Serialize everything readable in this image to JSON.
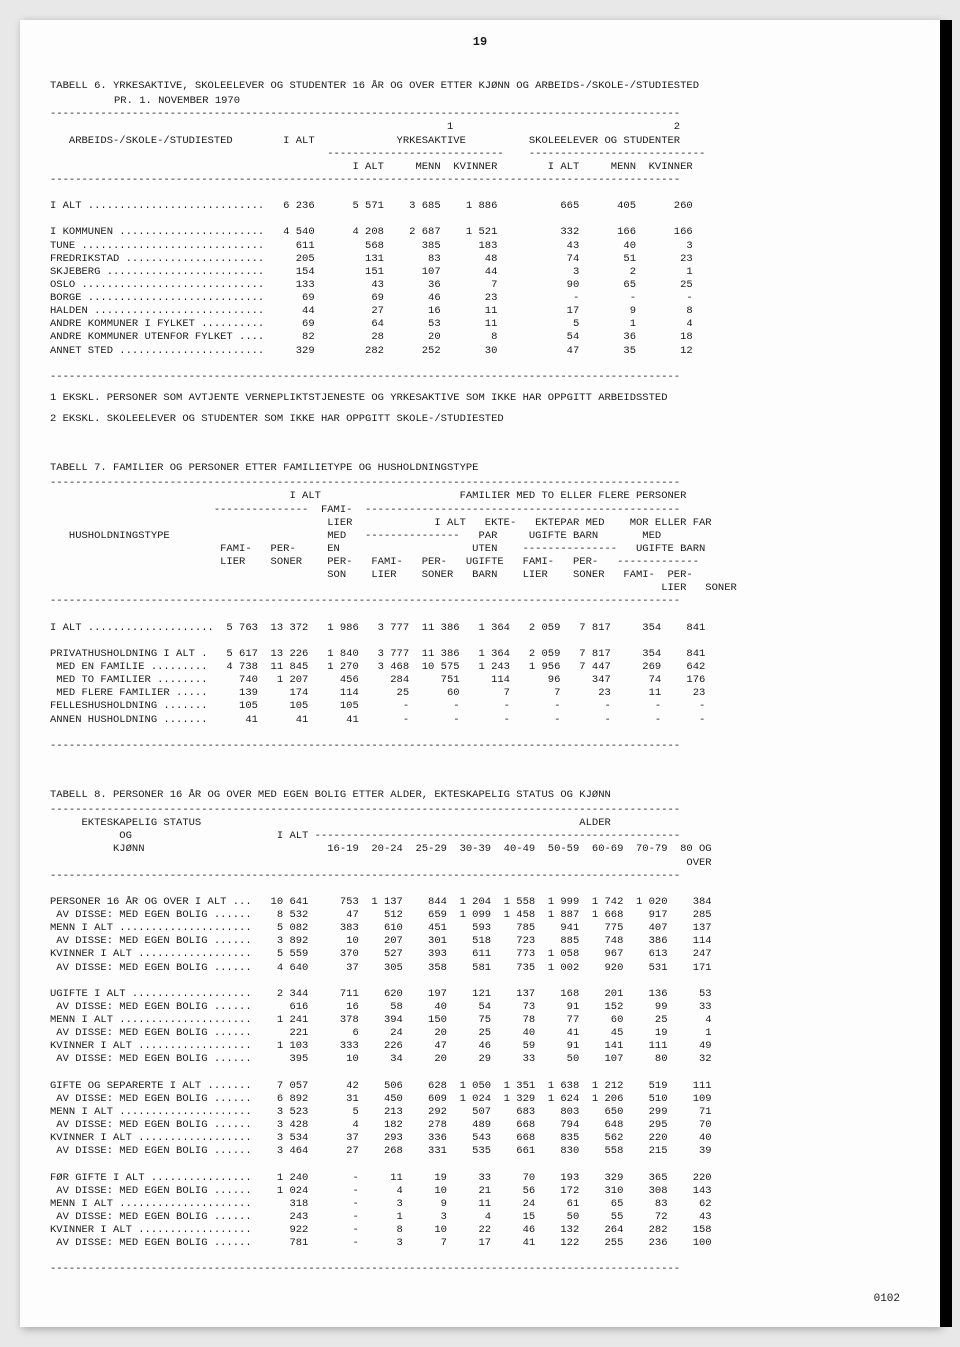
{
  "page_number": "19",
  "table6": {
    "title": "TABELL 6. YRKESAKTIVE, SKOLEELEVER OG STUDENTER 16 ÅR OG OVER ETTER KJØNN OG ARBEIDS-/SKOLE-/STUDIESTED",
    "subtitle": "PR. 1. NOVEMBER 1970",
    "header1": "ARBEIDS-/SKOLE-/STUDIESTED",
    "header_ialt": "I ALT",
    "group1": "YRKESAKTIVE",
    "group1_sup": "1",
    "group2": "SKOLEELEVER OG STUDENTER",
    "group2_sup": "2",
    "cols": [
      "I ALT",
      "MENN",
      "KVINNER",
      "I ALT",
      "MENN",
      "KVINNER"
    ],
    "rows": [
      {
        "label": "I ALT ............................",
        "v": [
          "6 236",
          "5 571",
          "3 685",
          "1 886",
          "665",
          "405",
          "260"
        ]
      },
      {
        "label": "I KOMMUNEN .......................",
        "v": [
          "4 540",
          "4 208",
          "2 687",
          "1 521",
          "332",
          "166",
          "166"
        ]
      },
      {
        "label": "TUNE .............................",
        "v": [
          "611",
          "568",
          "385",
          "183",
          "43",
          "40",
          "3"
        ]
      },
      {
        "label": "FREDRIKSTAD ......................",
        "v": [
          "205",
          "131",
          "83",
          "48",
          "74",
          "51",
          "23"
        ]
      },
      {
        "label": "SKJEBERG .........................",
        "v": [
          "154",
          "151",
          "107",
          "44",
          "3",
          "2",
          "1"
        ]
      },
      {
        "label": "OSLO .............................",
        "v": [
          "133",
          "43",
          "36",
          "7",
          "90",
          "65",
          "25"
        ]
      },
      {
        "label": "BORGE ............................",
        "v": [
          "69",
          "69",
          "46",
          "23",
          "-",
          "-",
          "-"
        ]
      },
      {
        "label": "HALDEN ...........................",
        "v": [
          "44",
          "27",
          "16",
          "11",
          "17",
          "9",
          "8"
        ]
      },
      {
        "label": "ANDRE KOMMUNER I FYLKET ..........",
        "v": [
          "69",
          "64",
          "53",
          "11",
          "5",
          "1",
          "4"
        ]
      },
      {
        "label": "ANDRE KOMMUNER UTENFOR FYLKET ....",
        "v": [
          "82",
          "28",
          "20",
          "8",
          "54",
          "36",
          "18"
        ]
      },
      {
        "label": "ANNET STED .......................",
        "v": [
          "329",
          "282",
          "252",
          "30",
          "47",
          "35",
          "12"
        ]
      }
    ],
    "note1": "1 EKSKL. PERSONER SOM AVTJENTE VERNEPLIKTSTJENESTE OG YRKESAKTIVE SOM IKKE HAR OPPGITT ARBEIDSSTED",
    "note2": "2 EKSKL. SKOLEELEVER OG STUDENTER SOM IKKE HAR OPPGITT SKOLE-/STUDIESTED"
  },
  "table7": {
    "title": "TABELL 7. FAMILIER OG PERSONER ETTER FAMILIETYPE OG HUSHOLDNINGSTYPE",
    "header_label": "HUSHOLDNINGSTYPE",
    "group_ialt": "I ALT",
    "group_fam": "FAMILIER MED TO ELLER FLERE PERSONER",
    "sub_famlier_en": "FAMI-\nLIER\nMED\nEN\nPER-\nSON",
    "sub_ialt": "I ALT",
    "sub_ektepar": "EKTE-\nPAR\nUTEN\nUGIFTE\nBARN",
    "sub_ektepar_med": "EKTEPAR MED\nUGIFTE BARN",
    "sub_moreller": "MOR ELLER FAR\nMED\nUGIFTE BARN",
    "cols_low": [
      "FAMI-\nLIER",
      "PER-\nSONER",
      "FAMI-\nLIER",
      "PER-\nSONER",
      "FAMI-\nLIER",
      "PER-\nSONER",
      "FAMI-\nLIER",
      "PER-\nSONER"
    ],
    "rows": [
      {
        "label": "I ALT ....................",
        "v": [
          "5 763",
          "13 372",
          "1 986",
          "3 777",
          "11 386",
          "1 364",
          "2 059",
          "7 817",
          "354",
          "841"
        ]
      },
      {
        "label": "PRIVATHUSHOLDNING I ALT .",
        "v": [
          "5 617",
          "13 226",
          "1 840",
          "3 777",
          "11 386",
          "1 364",
          "2 059",
          "7 817",
          "354",
          "841"
        ]
      },
      {
        "label": " MED EN FAMILIE .........",
        "v": [
          "4 738",
          "11 845",
          "1 270",
          "3 468",
          "10 575",
          "1 243",
          "1 956",
          "7 447",
          "269",
          "642"
        ]
      },
      {
        "label": " MED TO FAMILIER ........",
        "v": [
          "740",
          "1 207",
          "456",
          "284",
          "751",
          "114",
          "96",
          "347",
          "74",
          "176"
        ]
      },
      {
        "label": " MED FLERE FAMILIER .....",
        "v": [
          "139",
          "174",
          "114",
          "25",
          "60",
          "7",
          "7",
          "23",
          "11",
          "23"
        ]
      },
      {
        "label": "FELLESHUSHOLDNING .......",
        "v": [
          "105",
          "105",
          "105",
          "-",
          "-",
          "-",
          "-",
          "-",
          "-",
          "-"
        ]
      },
      {
        "label": "ANNEN HUSHOLDNING .......",
        "v": [
          "41",
          "41",
          "41",
          "-",
          "-",
          "-",
          "-",
          "-",
          "-",
          "-"
        ]
      }
    ]
  },
  "table8": {
    "title": "TABELL 8. PERSONER 16 ÅR OG OVER MED EGEN BOLIG ETTER ALDER, EKTESKAPELIG STATUS OG KJØNN",
    "header_label1": "EKTESKAPELIG STATUS",
    "header_label2": "OG",
    "header_label3": "KJØNN",
    "header_ialt": "I ALT",
    "header_alder": "ALDER",
    "age_cols": [
      "16-19",
      "20-24",
      "25-29",
      "30-39",
      "40-49",
      "50-59",
      "60-69",
      "70-79",
      "80 OG\nOVER"
    ],
    "rows": [
      {
        "label": "PERSONER 16 ÅR OG OVER I ALT ...",
        "v": [
          "10 641",
          "753",
          "1 137",
          "844",
          "1 204",
          "1 558",
          "1 999",
          "1 742",
          "1 020",
          "384"
        ]
      },
      {
        "label": " AV DISSE: MED EGEN BOLIG ......",
        "v": [
          "8 532",
          "47",
          "512",
          "659",
          "1 099",
          "1 458",
          "1 887",
          "1 668",
          "917",
          "285"
        ]
      },
      {
        "label": "MENN I ALT .....................",
        "v": [
          "5 082",
          "383",
          "610",
          "451",
          "593",
          "785",
          "941",
          "775",
          "407",
          "137"
        ]
      },
      {
        "label": " AV DISSE: MED EGEN BOLIG ......",
        "v": [
          "3 892",
          "10",
          "207",
          "301",
          "518",
          "723",
          "885",
          "748",
          "386",
          "114"
        ]
      },
      {
        "label": "KVINNER I ALT ..................",
        "v": [
          "5 559",
          "370",
          "527",
          "393",
          "611",
          "773",
          "1 058",
          "967",
          "613",
          "247"
        ]
      },
      {
        "label": " AV DISSE: MED EGEN BOLIG ......",
        "v": [
          "4 640",
          "37",
          "305",
          "358",
          "581",
          "735",
          "1 002",
          "920",
          "531",
          "171"
        ]
      },
      {
        "gap": true
      },
      {
        "label": "UGIFTE I ALT ...................",
        "v": [
          "2 344",
          "711",
          "620",
          "197",
          "121",
          "137",
          "168",
          "201",
          "136",
          "53"
        ]
      },
      {
        "label": " AV DISSE: MED EGEN BOLIG ......",
        "v": [
          "616",
          "16",
          "58",
          "40",
          "54",
          "73",
          "91",
          "152",
          "99",
          "33"
        ]
      },
      {
        "label": "MENN I ALT .....................",
        "v": [
          "1 241",
          "378",
          "394",
          "150",
          "75",
          "78",
          "77",
          "60",
          "25",
          "4"
        ]
      },
      {
        "label": " AV DISSE: MED EGEN BOLIG ......",
        "v": [
          "221",
          "6",
          "24",
          "20",
          "25",
          "40",
          "41",
          "45",
          "19",
          "1"
        ]
      },
      {
        "label": "KVINNER I ALT ..................",
        "v": [
          "1 103",
          "333",
          "226",
          "47",
          "46",
          "59",
          "91",
          "141",
          "111",
          "49"
        ]
      },
      {
        "label": " AV DISSE: MED EGEN BOLIG ......",
        "v": [
          "395",
          "10",
          "34",
          "20",
          "29",
          "33",
          "50",
          "107",
          "80",
          "32"
        ]
      },
      {
        "gap": true
      },
      {
        "label": "GIFTE OG SEPARERTE I ALT .......",
        "v": [
          "7 057",
          "42",
          "506",
          "628",
          "1 050",
          "1 351",
          "1 638",
          "1 212",
          "519",
          "111"
        ]
      },
      {
        "label": " AV DISSE: MED EGEN BOLIG ......",
        "v": [
          "6 892",
          "31",
          "450",
          "609",
          "1 024",
          "1 329",
          "1 624",
          "1 206",
          "510",
          "109"
        ]
      },
      {
        "label": "MENN I ALT .....................",
        "v": [
          "3 523",
          "5",
          "213",
          "292",
          "507",
          "683",
          "803",
          "650",
          "299",
          "71"
        ]
      },
      {
        "label": " AV DISSE: MED EGEN BOLIG ......",
        "v": [
          "3 428",
          "4",
          "182",
          "278",
          "489",
          "668",
          "794",
          "648",
          "295",
          "70"
        ]
      },
      {
        "label": "KVINNER I ALT ..................",
        "v": [
          "3 534",
          "37",
          "293",
          "336",
          "543",
          "668",
          "835",
          "562",
          "220",
          "40"
        ]
      },
      {
        "label": " AV DISSE: MED EGEN BOLIG ......",
        "v": [
          "3 464",
          "27",
          "268",
          "331",
          "535",
          "661",
          "830",
          "558",
          "215",
          "39"
        ]
      },
      {
        "gap": true
      },
      {
        "label": "FØR GIFTE I ALT ................",
        "v": [
          "1 240",
          "-",
          "11",
          "19",
          "33",
          "70",
          "193",
          "329",
          "365",
          "220"
        ]
      },
      {
        "label": " AV DISSE: MED EGEN BOLIG ......",
        "v": [
          "1 024",
          "-",
          "4",
          "10",
          "21",
          "56",
          "172",
          "310",
          "308",
          "143"
        ]
      },
      {
        "label": "MENN I ALT .....................",
        "v": [
          "318",
          "-",
          "3",
          "9",
          "11",
          "24",
          "61",
          "65",
          "83",
          "62"
        ]
      },
      {
        "label": " AV DISSE: MED EGEN BOLIG ......",
        "v": [
          "243",
          "-",
          "1",
          "3",
          "4",
          "15",
          "50",
          "55",
          "72",
          "43"
        ]
      },
      {
        "label": "KVINNER I ALT ..................",
        "v": [
          "922",
          "-",
          "8",
          "10",
          "22",
          "46",
          "132",
          "264",
          "282",
          "158"
        ]
      },
      {
        "label": " AV DISSE: MED EGEN BOLIG ......",
        "v": [
          "781",
          "-",
          "3",
          "7",
          "17",
          "41",
          "122",
          "255",
          "236",
          "100"
        ]
      }
    ]
  },
  "footer_code": "0102"
}
